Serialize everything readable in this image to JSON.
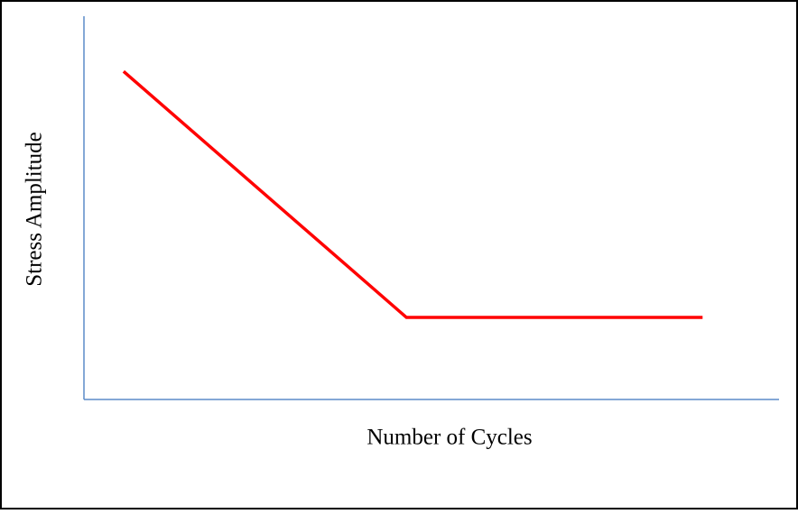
{
  "chart_data": {
    "type": "line",
    "xlabel": "Number of Cycles",
    "ylabel": "Stress Amplitude",
    "x": [
      5.7,
      46.4,
      89.0
    ],
    "values": [
      85.6,
      21.4,
      21.4
    ],
    "color": "#ff0000",
    "axis_color": "#5b8cc8",
    "xlim": [
      0,
      100
    ],
    "ylim": [
      0,
      100
    ]
  }
}
